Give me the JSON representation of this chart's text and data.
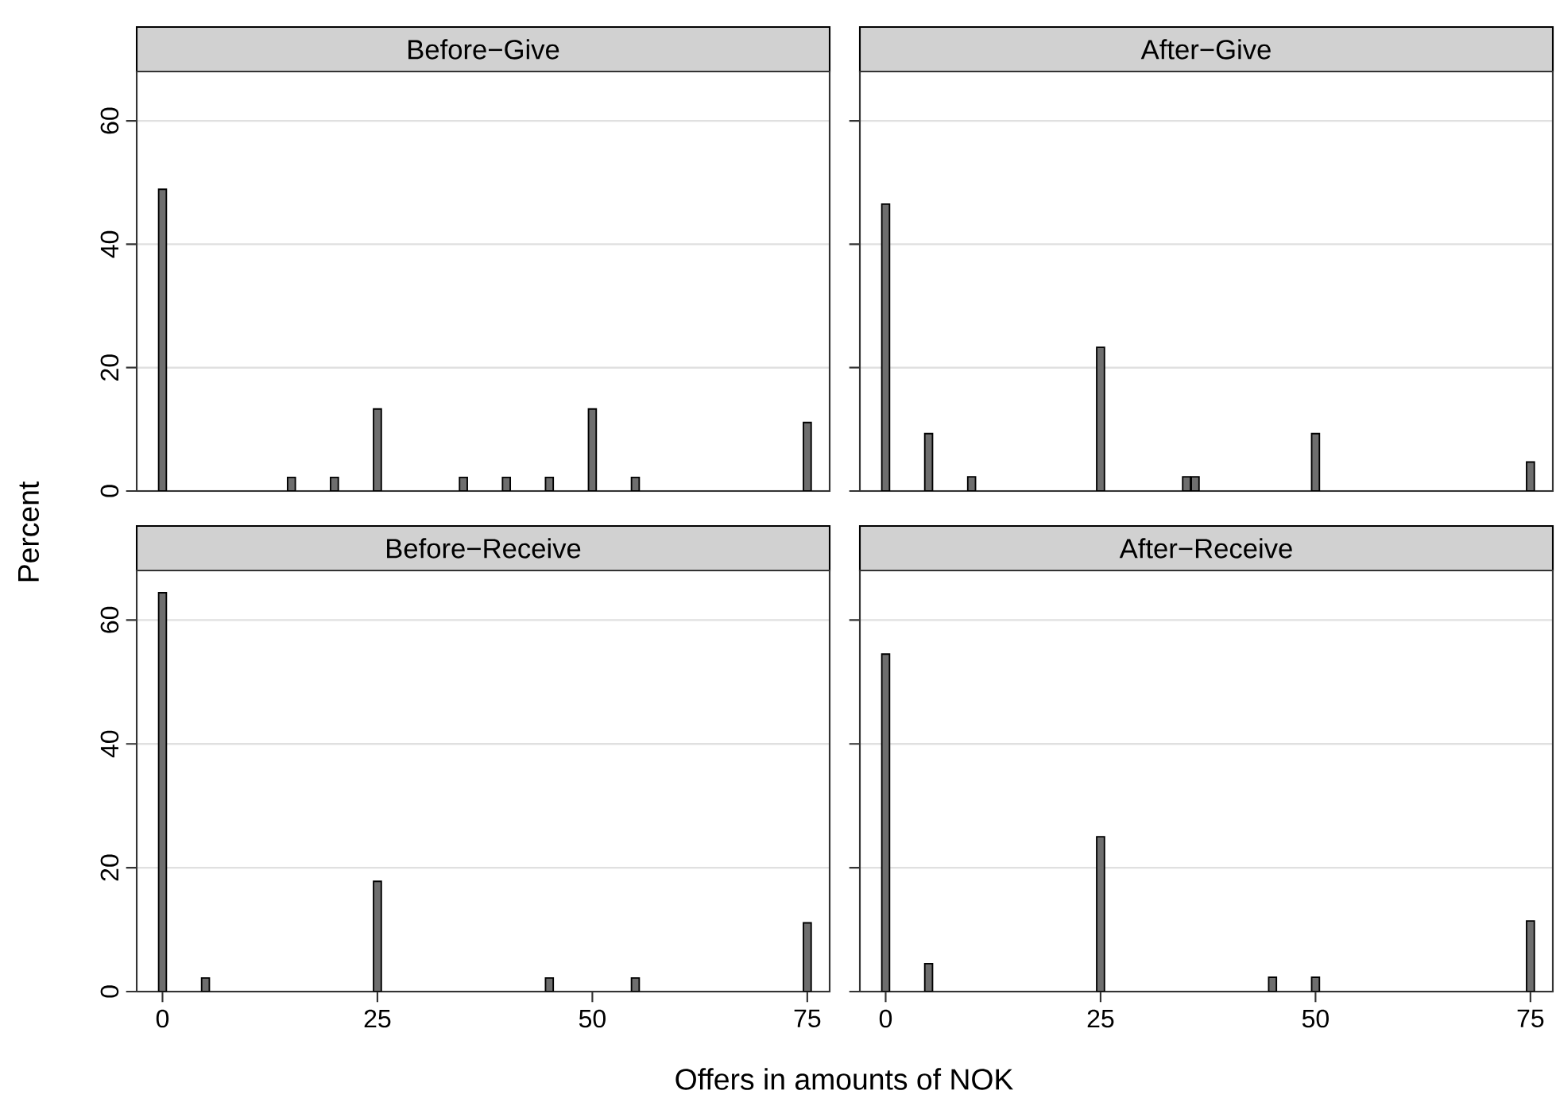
{
  "chart_data": [
    {
      "type": "bar",
      "title": "Before−Give",
      "ylabel": "Percent",
      "x": [
        0,
        15,
        20,
        25,
        35,
        40,
        45,
        50,
        55,
        75
      ],
      "values": [
        48.9,
        2.2,
        2.2,
        13.3,
        2.2,
        2.2,
        2.2,
        13.3,
        2.2,
        11.1
      ],
      "color": "#6e6e6e",
      "xlim": [
        -3,
        77.6
      ],
      "ylim": [
        0,
        68
      ],
      "xticks": [
        0,
        25,
        50,
        75
      ],
      "yticks": [
        0,
        20,
        40,
        60
      ],
      "grid": "y",
      "tick_labels": "y"
    },
    {
      "type": "bar",
      "title": "After−Give",
      "x": [
        0,
        5,
        10,
        25,
        35,
        36,
        50,
        75
      ],
      "values": [
        46.5,
        9.3,
        2.3,
        23.3,
        2.3,
        2.3,
        9.3,
        4.7
      ],
      "color": "#6e6e6e",
      "xlim": [
        -3,
        77.6
      ],
      "ylim": [
        0,
        68
      ],
      "xticks": [
        0,
        25,
        50,
        75
      ],
      "yticks": [
        0,
        20,
        40,
        60
      ],
      "grid": "y",
      "tick_labels": false
    },
    {
      "type": "bar",
      "title": "Before−Receive",
      "xlabel": "Offers in amounts of NOK",
      "x": [
        0,
        5,
        25,
        45,
        55,
        75
      ],
      "values": [
        64.4,
        2.2,
        17.8,
        2.2,
        2.2,
        11.1
      ],
      "color": "#6e6e6e",
      "xlim": [
        -3,
        77.6
      ],
      "ylim": [
        0,
        68
      ],
      "xticks": [
        0,
        25,
        50,
        75
      ],
      "yticks": [
        0,
        20,
        40,
        60
      ],
      "grid": "y"
    },
    {
      "type": "bar",
      "title": "After−Receive",
      "x": [
        0,
        5,
        25,
        45,
        50,
        75
      ],
      "values": [
        54.5,
        4.5,
        25.0,
        2.3,
        2.3,
        11.4
      ],
      "color": "#6e6e6e",
      "xlim": [
        -3,
        77.6
      ],
      "ylim": [
        0,
        68
      ],
      "xticks": [
        0,
        25,
        50,
        75
      ],
      "yticks": [
        0,
        20,
        40,
        60
      ],
      "grid": "y",
      "tick_labels": "x"
    }
  ]
}
